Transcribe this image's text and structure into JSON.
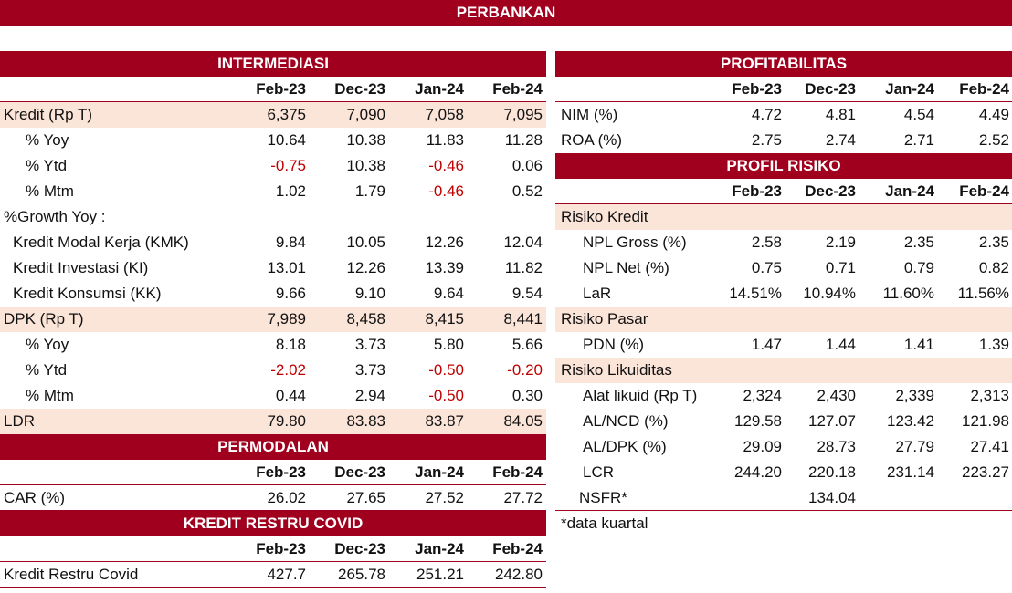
{
  "title": "PERBANKAN",
  "periods": [
    "Feb-23",
    "Dec-23",
    "Jan-24",
    "Feb-24"
  ],
  "intermediasi": {
    "title": "INTERMEDIASI",
    "rows": [
      {
        "label": "Kredit (Rp T)",
        "values": [
          "6,375",
          "7,090",
          "7,058",
          "7,095"
        ]
      },
      {
        "label": "% Yoy",
        "values": [
          "10.64",
          "10.38",
          "11.83",
          "11.28"
        ]
      },
      {
        "label": "% Ytd",
        "values": [
          "-0.75",
          "10.38",
          "-0.46",
          "0.06"
        ]
      },
      {
        "label": "% Mtm",
        "values": [
          "1.02",
          "1.79",
          "-0.46",
          "0.52"
        ]
      },
      {
        "label": "%Growth Yoy :"
      },
      {
        "label": "Kredit Modal Kerja (KMK)",
        "values": [
          "9.84",
          "10.05",
          "12.26",
          "12.04"
        ]
      },
      {
        "label": "Kredit Investasi (KI)",
        "values": [
          "13.01",
          "12.26",
          "13.39",
          "11.82"
        ]
      },
      {
        "label": "Kredit Konsumsi (KK)",
        "values": [
          "9.66",
          "9.10",
          "9.64",
          "9.54"
        ]
      },
      {
        "label": "DPK (Rp T)",
        "values": [
          "7,989",
          "8,458",
          "8,415",
          "8,441"
        ]
      },
      {
        "label": "% Yoy",
        "values": [
          "8.18",
          "3.73",
          "5.80",
          "5.66"
        ]
      },
      {
        "label": "% Ytd",
        "values": [
          "-2.02",
          "3.73",
          "-0.50",
          "-0.20"
        ]
      },
      {
        "label": "% Mtm",
        "values": [
          "0.44",
          "2.94",
          "-0.50",
          "0.30"
        ]
      },
      {
        "label": "LDR",
        "values": [
          "79.80",
          "83.83",
          "83.87",
          "84.05"
        ]
      }
    ]
  },
  "permodalan": {
    "title": "PERMODALAN",
    "rows": [
      {
        "label": "CAR (%)",
        "values": [
          "26.02",
          "27.65",
          "27.52",
          "27.72"
        ]
      }
    ]
  },
  "kredit_restru": {
    "title": "KREDIT RESTRU COVID",
    "rows": [
      {
        "label": "Kredit Restru Covid",
        "values": [
          "427.7",
          "265.78",
          "251.21",
          "242.80"
        ]
      }
    ]
  },
  "profitabilitas": {
    "title": "PROFITABILITAS",
    "rows": [
      {
        "label": "NIM (%)",
        "values": [
          "4.72",
          "4.81",
          "4.54",
          "4.49"
        ]
      },
      {
        "label": "ROA (%)",
        "values": [
          "2.75",
          "2.74",
          "2.71",
          "2.52"
        ]
      }
    ]
  },
  "profil_risiko": {
    "title": "PROFIL RISIKO",
    "rows": [
      {
        "label": "Risiko Kredit"
      },
      {
        "label": "NPL Gross (%)",
        "values": [
          "2.58",
          "2.19",
          "2.35",
          "2.35"
        ]
      },
      {
        "label": "NPL Net (%)",
        "values": [
          "0.75",
          "0.71",
          "0.79",
          "0.82"
        ]
      },
      {
        "label": "LaR",
        "values": [
          "14.51%",
          "10.94%",
          "11.60%",
          "11.56%"
        ]
      },
      {
        "label": "Risiko Pasar"
      },
      {
        "label": "PDN (%)",
        "values": [
          "1.47",
          "1.44",
          "1.41",
          "1.39"
        ]
      },
      {
        "label": "Risiko Likuiditas"
      },
      {
        "label": "Alat likuid (Rp T)",
        "values": [
          "2,324",
          "2,430",
          "2,339",
          "2,313"
        ]
      },
      {
        "label": "AL/NCD (%)",
        "values": [
          "129.58",
          "127.07",
          "123.42",
          "121.98"
        ]
      },
      {
        "label": "AL/DPK (%)",
        "values": [
          "29.09",
          "28.73",
          "27.79",
          "27.41"
        ]
      },
      {
        "label": "LCR",
        "values": [
          "244.20",
          "220.18",
          "231.14",
          "223.27"
        ]
      },
      {
        "label": "NSFR*",
        "values": [
          "",
          "134.04",
          "",
          ""
        ]
      }
    ],
    "note": "*data kuartal"
  },
  "colors": {
    "brand": "#a0001e",
    "highlight": "#fbe4d8",
    "negative": "#c00000"
  }
}
